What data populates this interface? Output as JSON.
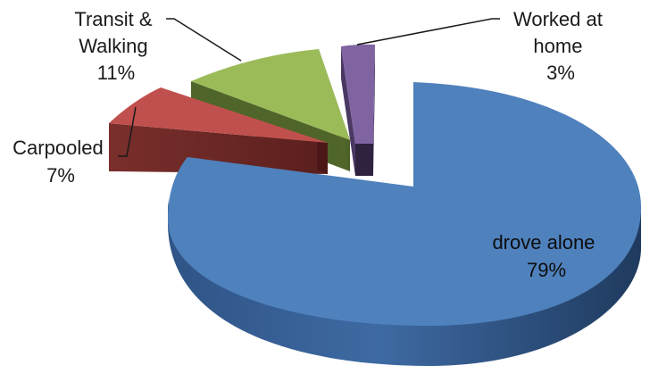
{
  "chart_data": {
    "type": "pie",
    "style": "3d-exploded",
    "legend": "none",
    "slices": [
      {
        "key": "drove",
        "label_lines": [
          "drove alone"
        ],
        "pct_label": "79%",
        "value": 79,
        "color": "#4f81bd"
      },
      {
        "key": "carpool",
        "label_lines": [
          "Carpooled"
        ],
        "pct_label": "7%",
        "value": 7,
        "color": "#c0504d"
      },
      {
        "key": "transit",
        "label_lines": [
          "Transit &",
          "Walking"
        ],
        "pct_label": "11%",
        "value": 11,
        "color": "#9bbb59"
      },
      {
        "key": "home",
        "label_lines": [
          "Worked at",
          "home"
        ],
        "pct_label": "3%",
        "value": 3,
        "color": "#8064a2"
      }
    ]
  }
}
